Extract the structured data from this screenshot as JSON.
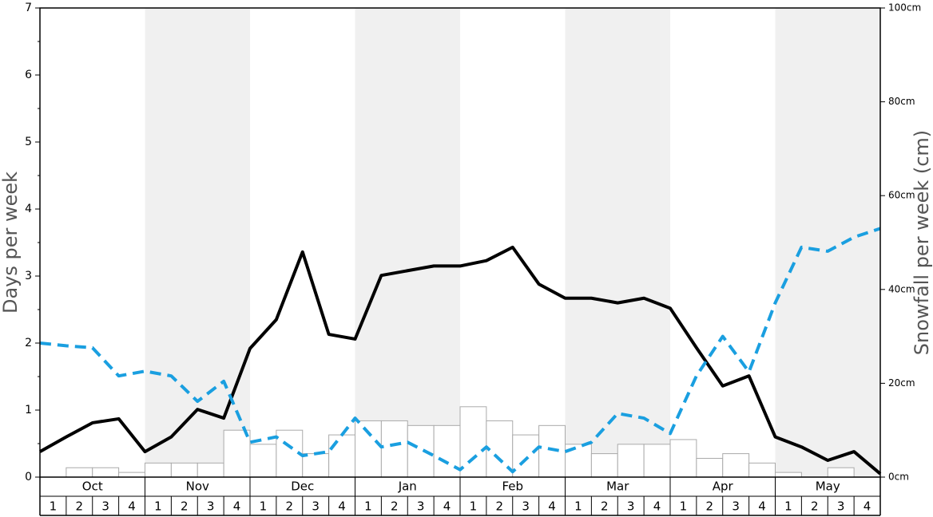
{
  "chart_data": {
    "type": "bar_line",
    "ylabel": "Days per week",
    "y2label": "Snowfall per week (cm)",
    "months": [
      "Oct",
      "Nov",
      "Dec",
      "Jan",
      "Feb",
      "Mar",
      "Apr",
      "May"
    ],
    "weeks": [
      "1",
      "2",
      "3",
      "4"
    ],
    "ylim": [
      0,
      7
    ],
    "yticks": [
      0,
      1,
      2,
      3,
      4,
      5,
      6,
      7
    ],
    "y2lim": [
      0,
      100
    ],
    "y2ticks": [
      {
        "value": 0,
        "label": "0cm"
      },
      {
        "value": 20,
        "label": "20cm"
      },
      {
        "value": 40,
        "label": "40cm"
      },
      {
        "value": 60,
        "label": "60cm"
      },
      {
        "value": 80,
        "label": "80cm"
      },
      {
        "value": 100,
        "label": "100cm"
      }
    ],
    "bars": {
      "axis": "y2",
      "color": "#ffffff",
      "edge": "#aaaaaa",
      "values": [
        0,
        2,
        2,
        1,
        3,
        3,
        3,
        10,
        7,
        10,
        5,
        9,
        12,
        12,
        11,
        11,
        15,
        12,
        9,
        11,
        7,
        5,
        7,
        7,
        8,
        4,
        5,
        3,
        1,
        0,
        2,
        0
      ]
    },
    "series": [
      {
        "color": "#000000",
        "dashed": false,
        "values": [
          0.38,
          0.6,
          0.81,
          0.87,
          0.38,
          0.6,
          1.01,
          0.88,
          1.92,
          2.35,
          3.36,
          2.13,
          2.06,
          3.01,
          3.08,
          3.15,
          3.15,
          3.23,
          3.43,
          2.88,
          2.67,
          2.67,
          2.6,
          2.67,
          2.52,
          1.93,
          1.36,
          1.51,
          0.6,
          0.45,
          0.25,
          0.38,
          0.05
        ]
      },
      {
        "color": "#1a9fe0",
        "dashed": true,
        "values": [
          2.0,
          1.96,
          1.93,
          1.51,
          1.58,
          1.51,
          1.13,
          1.43,
          0.52,
          0.6,
          0.32,
          0.38,
          0.88,
          0.45,
          0.52,
          0.32,
          0.11,
          0.45,
          0.08,
          0.45,
          0.38,
          0.52,
          0.95,
          0.88,
          0.65,
          1.51,
          2.1,
          1.57,
          2.6,
          3.43,
          3.37,
          3.58,
          3.71
        ]
      }
    ]
  }
}
